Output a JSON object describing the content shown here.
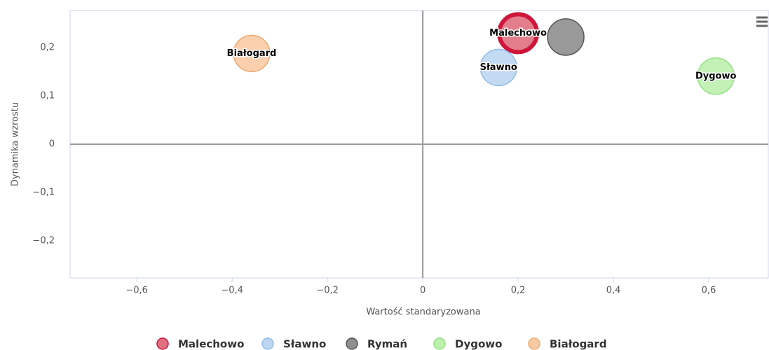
{
  "chart_data": {
    "type": "bubble",
    "x_label": "Wartość standaryzowana",
    "y_label": "Dynamika wzrostu",
    "xlim": [
      -0.74,
      0.725
    ],
    "ylim": [
      -0.277,
      0.277
    ],
    "xticks": [
      {
        "value": -0.6,
        "label": "−0,6"
      },
      {
        "value": -0.4,
        "label": "−0,4"
      },
      {
        "value": -0.2,
        "label": "−0,2"
      },
      0,
      {
        "value": 0.2,
        "label": "0,2"
      },
      {
        "value": 0.4,
        "label": "0,4"
      },
      {
        "value": 0.6,
        "label": "0,6"
      }
    ],
    "yticks": [
      {
        "value": -0.2,
        "label": "−0,2"
      },
      {
        "value": -0.1,
        "label": "−0,1"
      },
      0,
      {
        "value": 0.1,
        "label": "0,1"
      },
      {
        "value": 0.2,
        "label": "0,2"
      }
    ],
    "legend": "bottom",
    "series": [
      {
        "name": "Malechowo",
        "color": "#e07080",
        "border": "#d0163a",
        "x": [
          0.2
        ],
        "values": [
          0.23
        ]
      },
      {
        "name": "Sławno",
        "color": "#bcd6f2",
        "border": "#92bbe8",
        "x": [
          0.159
        ],
        "values": [
          0.159
        ]
      },
      {
        "name": "Rymań",
        "color": "#8e8e8e",
        "border": "#555555",
        "x": [
          0.3
        ],
        "values": [
          0.222
        ]
      },
      {
        "name": "Dygowo",
        "color": "#bdf0ae",
        "border": "#95e184",
        "x": [
          0.615
        ],
        "values": [
          0.141
        ]
      },
      {
        "name": "Białogard",
        "color": "#f8caa4",
        "border": "#f0aa74",
        "x": [
          -0.359
        ],
        "values": [
          0.188
        ]
      }
    ]
  }
}
